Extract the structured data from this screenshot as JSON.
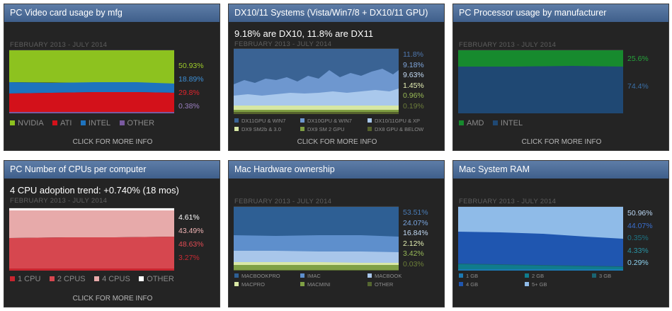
{
  "date_range": "FEBRUARY 2013 - JULY 2014",
  "more_info": "CLICK FOR MORE INFO",
  "panels": [
    {
      "title": "PC Video card usage by mfg",
      "headline": "",
      "legend": [
        {
          "label": "NVIDIA",
          "color": "#8dc21f"
        },
        {
          "label": "ATI",
          "color": "#d3111a"
        },
        {
          "label": "INTEL",
          "color": "#1e73be"
        },
        {
          "label": "OTHER",
          "color": "#7a5aa0"
        }
      ],
      "values": [
        {
          "text": "50.93%",
          "color": "#9fcd2a"
        },
        {
          "text": "18.89%",
          "color": "#3d8fd6"
        },
        {
          "text": "29.8%",
          "color": "#e0242c"
        },
        {
          "text": "0.38%",
          "color": "#9a7fc0"
        }
      ]
    },
    {
      "title": "DX10/11 Systems (Vista/Win7/8 + DX10/11 GPU)",
      "headline": "9.18% are DX10, 11.8% are DX11",
      "legend": [
        {
          "label": "DX11GPU & WIN7",
          "color": "#3a6394"
        },
        {
          "label": "DX10GPU & WIN7",
          "color": "#6e97cf"
        },
        {
          "label": "DX10/11GPU & XP",
          "color": "#a9c8ec"
        },
        {
          "label": "DX9 SM2b & 3.0",
          "color": "#d7e7a4"
        },
        {
          "label": "DX9 SM 2 GPU",
          "color": "#7f9e42"
        },
        {
          "label": "DX8 GPU & BELOW",
          "color": "#56632c"
        }
      ],
      "values": [
        {
          "text": "11.8%",
          "color": "#4f78b0"
        },
        {
          "text": "9.18%",
          "color": "#7fa6dc"
        },
        {
          "text": "9.63%",
          "color": "#c5dcf5"
        },
        {
          "text": "1.45%",
          "color": "#e6f0b5"
        },
        {
          "text": "0.96%",
          "color": "#98b955"
        },
        {
          "text": "0.19%",
          "color": "#6b7c3a"
        }
      ]
    },
    {
      "title": "PC Processor usage by manufacturer",
      "headline": "",
      "legend": [
        {
          "label": "AMD",
          "color": "#178a2e"
        },
        {
          "label": "INTEL",
          "color": "#1f4873"
        }
      ],
      "values": [
        {
          "text": "25.6%",
          "color": "#25a53b"
        },
        {
          "text": "74.4%",
          "color": "#3a6fa6"
        }
      ]
    },
    {
      "title": "PC Number of CPUs per computer",
      "headline": "4 CPU adoption trend: +0.740% (18 mos)",
      "legend": [
        {
          "label": "1 CPU",
          "color": "#c9252f"
        },
        {
          "label": "2 CPUS",
          "color": "#d6474f"
        },
        {
          "label": "4 CPUS",
          "color": "#e7aaaa"
        },
        {
          "label": "OTHER",
          "color": "#ffffff"
        }
      ],
      "values": [
        {
          "text": "4.61%",
          "color": "#ffffff"
        },
        {
          "text": "43.49%",
          "color": "#efb4b4"
        },
        {
          "text": "48.63%",
          "color": "#e14b53"
        },
        {
          "text": "3.27%",
          "color": "#c92a33"
        }
      ]
    },
    {
      "title": "Mac Hardware ownership",
      "headline": "",
      "legend": [
        {
          "label": "MACBOOKPRO",
          "color": "#2e5f94"
        },
        {
          "label": "IMAC",
          "color": "#5e8fcc"
        },
        {
          "label": "MACBOOK",
          "color": "#a8c6ea"
        },
        {
          "label": "MACPRO",
          "color": "#d9e8a6"
        },
        {
          "label": "MACMINI",
          "color": "#7fa045"
        },
        {
          "label": "OTHER",
          "color": "#556730"
        }
      ],
      "values": [
        {
          "text": "53.51%",
          "color": "#4a7db8"
        },
        {
          "text": "24.07%",
          "color": "#7aa6e0"
        },
        {
          "text": "16.84%",
          "color": "#c3daf4"
        },
        {
          "text": "2.12%",
          "color": "#e3efb2"
        },
        {
          "text": "3.42%",
          "color": "#97b957"
        },
        {
          "text": "0.03%",
          "color": "#6c7f38"
        }
      ]
    },
    {
      "title": "Mac System RAM",
      "headline": "",
      "legend": [
        {
          "label": "1 GB",
          "color": "#1b79b3"
        },
        {
          "label": "2 GB",
          "color": "#0f7c8d"
        },
        {
          "label": "3 GB",
          "color": "#1a6472"
        },
        {
          "label": "4 GB",
          "color": "#1f56b0"
        },
        {
          "label": "5+ GB",
          "color": "#8fbbe8"
        }
      ],
      "values": [
        {
          "text": "50.96%",
          "color": "#bcd8f5"
        },
        {
          "text": "44.07%",
          "color": "#3a6fcf"
        },
        {
          "text": "0.35%",
          "color": "#1d7384"
        },
        {
          "text": "4.33%",
          "color": "#2a95a6"
        },
        {
          "text": "0.29%",
          "color": "#8fd3f0"
        }
      ]
    }
  ]
}
